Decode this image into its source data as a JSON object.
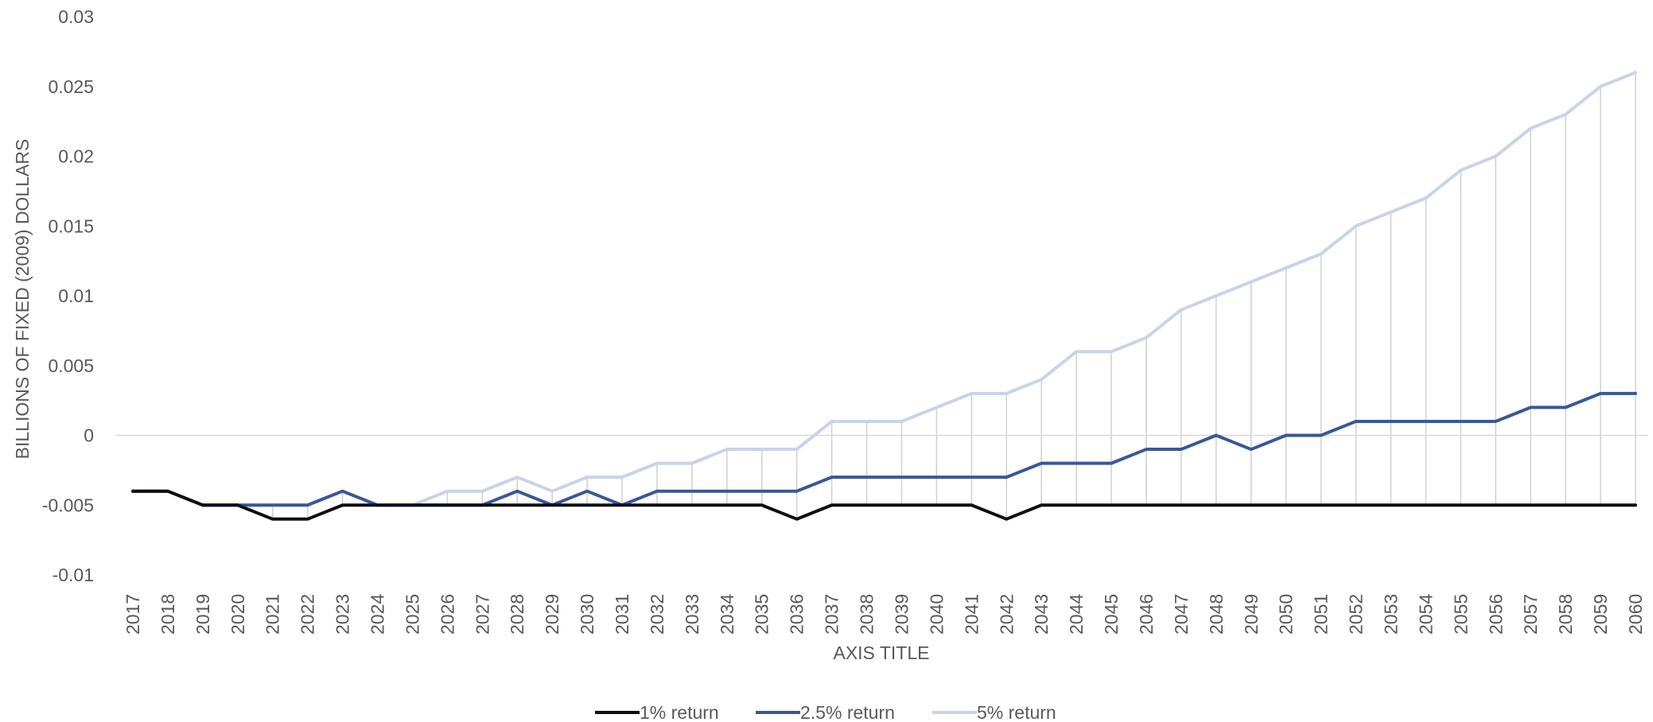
{
  "chart_data": {
    "type": "line",
    "title": "",
    "xlabel": "AXIS TITLE",
    "ylabel": "BILLIONS OF FIXED (2009) DOLLARS",
    "ylim": [
      -0.01,
      0.03
    ],
    "yticks": [
      "0.03",
      "0.025",
      "0.02",
      "0.015",
      "0.01",
      "0.005",
      "0",
      "-0.005",
      "-0.01"
    ],
    "ytick_values": [
      0.03,
      0.025,
      0.02,
      0.015,
      0.01,
      0.005,
      0,
      -0.005,
      -0.01
    ],
    "grid": "vertical drop lines",
    "legend_position": "bottom",
    "categories": [
      "2017",
      "2018",
      "2019",
      "2020",
      "2021",
      "2022",
      "2023",
      "2024",
      "2025",
      "2026",
      "2027",
      "2028",
      "2029",
      "2030",
      "2031",
      "2032",
      "2033",
      "2034",
      "2035",
      "2036",
      "2037",
      "2038",
      "2039",
      "2040",
      "2041",
      "2042",
      "2043",
      "2044",
      "2045",
      "2046",
      "2047",
      "2048",
      "2049",
      "2050",
      "2051",
      "2052",
      "2053",
      "2054",
      "2055",
      "2056",
      "2057",
      "2058",
      "2059",
      "2060"
    ],
    "series": [
      {
        "name": "1% return",
        "color": "#0d0d14",
        "values": [
          -0.004,
          -0.004,
          -0.005,
          -0.005,
          -0.006,
          -0.006,
          -0.005,
          -0.005,
          -0.005,
          -0.005,
          -0.005,
          -0.005,
          -0.005,
          -0.005,
          -0.005,
          -0.005,
          -0.005,
          -0.005,
          -0.005,
          -0.006,
          -0.005,
          -0.005,
          -0.005,
          -0.005,
          -0.005,
          -0.006,
          -0.005,
          -0.005,
          -0.005,
          -0.005,
          -0.005,
          -0.005,
          -0.005,
          -0.005,
          -0.005,
          -0.005,
          -0.005,
          -0.005,
          -0.005,
          -0.005,
          -0.005,
          -0.005,
          -0.005,
          -0.005
        ]
      },
      {
        "name": "2.5% return",
        "color": "#3a5796",
        "values": [
          -0.004,
          -0.004,
          -0.005,
          -0.005,
          -0.005,
          -0.005,
          -0.004,
          -0.005,
          -0.005,
          -0.005,
          -0.005,
          -0.004,
          -0.005,
          -0.004,
          -0.005,
          -0.004,
          -0.004,
          -0.004,
          -0.004,
          -0.004,
          -0.003,
          -0.003,
          -0.003,
          -0.003,
          -0.003,
          -0.003,
          -0.002,
          -0.002,
          -0.002,
          -0.001,
          -0.001,
          0,
          -0.001,
          0,
          0,
          0.001,
          0.001,
          0.001,
          0.001,
          0.001,
          0.002,
          0.002,
          0.003,
          0.003
        ]
      },
      {
        "name": "5% return",
        "color": "#c9d3e8",
        "values": [
          -0.004,
          -0.004,
          -0.005,
          -0.005,
          -0.005,
          -0.005,
          -0.004,
          -0.005,
          -0.005,
          -0.004,
          -0.004,
          -0.003,
          -0.004,
          -0.003,
          -0.003,
          -0.002,
          -0.002,
          -0.001,
          -0.001,
          -0.001,
          0.001,
          0.001,
          0.001,
          0.002,
          0.003,
          0.003,
          0.004,
          0.006,
          0.006,
          0.007,
          0.009,
          0.01,
          0.011,
          0.012,
          0.013,
          0.015,
          0.016,
          0.017,
          0.019,
          0.02,
          0.022,
          0.023,
          0.025,
          0.026
        ]
      }
    ]
  }
}
